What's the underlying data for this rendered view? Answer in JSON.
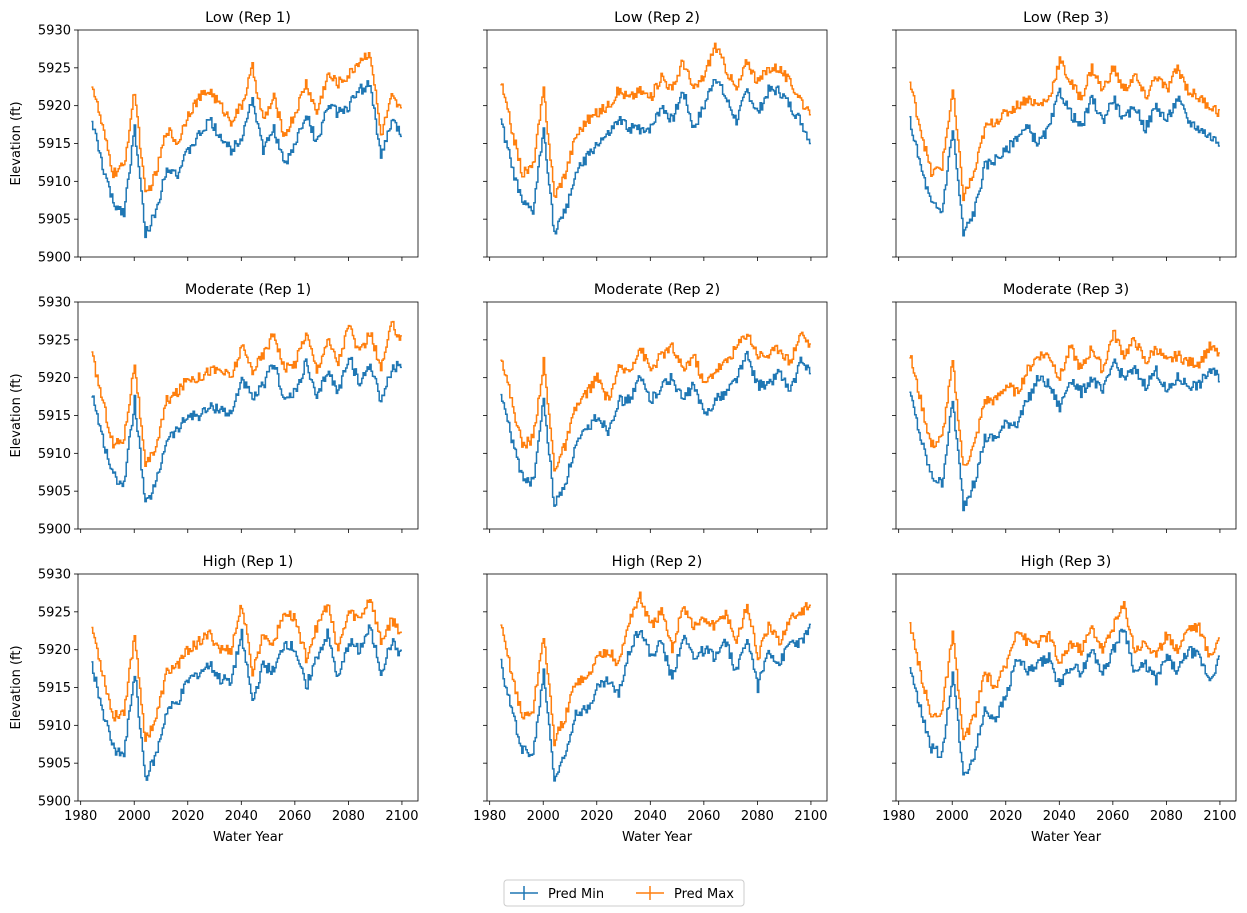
{
  "figure": {
    "legend": {
      "placement": "bottom-center",
      "entries": [
        {
          "label": "Pred Min",
          "color": "#1f77b4"
        },
        {
          "label": "Pred Max",
          "color": "#ff7f0e"
        }
      ]
    }
  },
  "chart_data": {
    "type": "line",
    "layout": "3x3 grid, shared x and y axes",
    "xlabel": "Water Year",
    "ylabel": "Elevation (ft)",
    "xlim": [
      1979,
      2106
    ],
    "ylim": [
      5900,
      5930
    ],
    "xticks": [
      1980,
      2000,
      2020,
      2040,
      2060,
      2080,
      2100
    ],
    "yticks": [
      5900,
      5905,
      5910,
      5915,
      5920,
      5925,
      5930
    ],
    "grid": false,
    "x": [
      1984,
      1988,
      1992,
      1996,
      2000,
      2004,
      2008,
      2012,
      2016,
      2020,
      2024,
      2028,
      2032,
      2036,
      2040,
      2044,
      2048,
      2052,
      2056,
      2060,
      2064,
      2068,
      2072,
      2076,
      2080,
      2084,
      2088,
      2092,
      2096,
      2100
    ],
    "panels": [
      {
        "title": "Low (Rep 1)",
        "series": [
          {
            "name": "Pred Min",
            "color": "#1f77b4",
            "values": [
              5918,
              5912,
              5907,
              5906,
              5917,
              5903,
              5906,
              5912,
              5911,
              5914,
              5916,
              5918,
              5916,
              5914,
              5916,
              5921,
              5914,
              5917,
              5912,
              5915,
              5919,
              5915,
              5920,
              5919,
              5920,
              5922,
              5923,
              5913,
              5918,
              5916
            ]
          },
          {
            "name": "Pred Max",
            "color": "#ff7f0e",
            "values": [
              5923,
              5917,
              5911,
              5912,
              5922,
              5908,
              5911,
              5917,
              5915,
              5919,
              5921,
              5922,
              5920,
              5918,
              5920,
              5925,
              5918,
              5921,
              5916,
              5919,
              5923,
              5919,
              5924,
              5923,
              5924,
              5926,
              5927,
              5916,
              5921,
              5919
            ]
          }
        ]
      },
      {
        "title": "Low (Rep 2)",
        "series": [
          {
            "name": "Pred Min",
            "color": "#1f77b4",
            "values": [
              5918,
              5912,
              5907,
              5906,
              5917,
              5903,
              5906,
              5911,
              5913,
              5915,
              5916,
              5918,
              5917,
              5917,
              5917,
              5920,
              5918,
              5922,
              5917,
              5920,
              5924,
              5921,
              5918,
              5922,
              5919,
              5922,
              5922,
              5920,
              5918,
              5915
            ]
          },
          {
            "name": "Pred Max",
            "color": "#ff7f0e",
            "values": [
              5923,
              5917,
              5911,
              5912,
              5922,
              5908,
              5911,
              5916,
              5918,
              5919,
              5920,
              5922,
              5921,
              5922,
              5921,
              5924,
              5922,
              5926,
              5922,
              5924,
              5928,
              5925,
              5922,
              5926,
              5923,
              5925,
              5925,
              5923,
              5921,
              5918
            ]
          }
        ]
      },
      {
        "title": "Low (Rep 3)",
        "series": [
          {
            "name": "Pred Min",
            "color": "#1f77b4",
            "values": [
              5918,
              5912,
              5907,
              5906,
              5917,
              5903,
              5906,
              5912,
              5913,
              5914,
              5916,
              5917,
              5915,
              5917,
              5922,
              5919,
              5917,
              5921,
              5918,
              5921,
              5918,
              5920,
              5917,
              5920,
              5918,
              5921,
              5918,
              5917,
              5916,
              5915
            ]
          },
          {
            "name": "Pred Max",
            "color": "#ff7f0e",
            "values": [
              5923,
              5917,
              5911,
              5912,
              5922,
              5908,
              5911,
              5917,
              5918,
              5919,
              5920,
              5921,
              5920,
              5921,
              5926,
              5923,
              5921,
              5925,
              5922,
              5925,
              5922,
              5924,
              5921,
              5924,
              5922,
              5925,
              5922,
              5921,
              5920,
              5919
            ]
          }
        ]
      },
      {
        "title": "Moderate (Rep 1)",
        "series": [
          {
            "name": "Pred Min",
            "color": "#1f77b4",
            "values": [
              5918,
              5912,
              5907,
              5906,
              5917,
              5903,
              5906,
              5912,
              5913,
              5915,
              5915,
              5916,
              5916,
              5915,
              5920,
              5917,
              5919,
              5922,
              5917,
              5918,
              5922,
              5917,
              5921,
              5918,
              5923,
              5919,
              5922,
              5917,
              5921,
              5922
            ]
          },
          {
            "name": "Pred Max",
            "color": "#ff7f0e",
            "values": [
              5923,
              5917,
              5911,
              5912,
              5922,
              5908,
              5911,
              5917,
              5918,
              5920,
              5920,
              5921,
              5921,
              5920,
              5924,
              5921,
              5923,
              5926,
              5921,
              5922,
              5926,
              5921,
              5925,
              5922,
              5927,
              5923,
              5926,
              5921,
              5927,
              5925
            ]
          }
        ]
      },
      {
        "title": "Moderate (Rep 2)",
        "series": [
          {
            "name": "Pred Min",
            "color": "#1f77b4",
            "values": [
              5918,
              5912,
              5907,
              5906,
              5917,
              5903,
              5906,
              5911,
              5913,
              5915,
              5913,
              5917,
              5917,
              5920,
              5917,
              5919,
              5920,
              5917,
              5919,
              5915,
              5917,
              5918,
              5920,
              5923,
              5919,
              5919,
              5921,
              5918,
              5922,
              5921
            ]
          },
          {
            "name": "Pred Max",
            "color": "#ff7f0e",
            "values": [
              5923,
              5917,
              5911,
              5912,
              5922,
              5908,
              5911,
              5916,
              5918,
              5920,
              5917,
              5921,
              5921,
              5924,
              5921,
              5923,
              5924,
              5921,
              5923,
              5919,
              5921,
              5922,
              5924,
              5926,
              5923,
              5923,
              5924,
              5922,
              5926,
              5924
            ]
          }
        ]
      },
      {
        "title": "Moderate (Rep 3)",
        "series": [
          {
            "name": "Pred Min",
            "color": "#1f77b4",
            "values": [
              5918,
              5912,
              5907,
              5906,
              5917,
              5903,
              5906,
              5912,
              5912,
              5914,
              5914,
              5917,
              5920,
              5919,
              5916,
              5920,
              5918,
              5920,
              5918,
              5922,
              5920,
              5921,
              5919,
              5921,
              5918,
              5920,
              5919,
              5919,
              5921,
              5920
            ]
          },
          {
            "name": "Pred Max",
            "color": "#ff7f0e",
            "values": [
              5923,
              5917,
              5911,
              5912,
              5922,
              5908,
              5911,
              5917,
              5917,
              5919,
              5918,
              5921,
              5923,
              5923,
              5920,
              5924,
              5921,
              5924,
              5921,
              5926,
              5923,
              5925,
              5922,
              5924,
              5922,
              5923,
              5922,
              5922,
              5924,
              5923
            ]
          }
        ]
      },
      {
        "title": "High (Rep 1)",
        "series": [
          {
            "name": "Pred Min",
            "color": "#1f77b4",
            "values": [
              5918,
              5912,
              5907,
              5906,
              5917,
              5903,
              5906,
              5912,
              5913,
              5916,
              5917,
              5918,
              5916,
              5916,
              5922,
              5913,
              5918,
              5917,
              5921,
              5920,
              5915,
              5919,
              5922,
              5916,
              5921,
              5920,
              5923,
              5917,
              5921,
              5919
            ]
          },
          {
            "name": "Pred Max",
            "color": "#ff7f0e",
            "values": [
              5923,
              5917,
              5911,
              5912,
              5922,
              5908,
              5911,
              5917,
              5918,
              5920,
              5921,
              5922,
              5920,
              5920,
              5926,
              5917,
              5922,
              5921,
              5925,
              5924,
              5919,
              5923,
              5926,
              5920,
              5925,
              5924,
              5927,
              5921,
              5924,
              5922
            ]
          }
        ]
      },
      {
        "title": "High (Rep 2)",
        "series": [
          {
            "name": "Pred Min",
            "color": "#1f77b4",
            "values": [
              5918,
              5912,
              5907,
              5906,
              5917,
              5903,
              5906,
              5912,
              5912,
              5915,
              5916,
              5914,
              5920,
              5923,
              5919,
              5921,
              5916,
              5922,
              5919,
              5920,
              5919,
              5921,
              5917,
              5922,
              5915,
              5920,
              5918,
              5921,
              5921,
              5923
            ]
          },
          {
            "name": "Pred Max",
            "color": "#ff7f0e",
            "values": [
              5923,
              5917,
              5911,
              5912,
              5922,
              5908,
              5911,
              5916,
              5916,
              5919,
              5920,
              5918,
              5924,
              5927,
              5923,
              5925,
              5920,
              5926,
              5923,
              5924,
              5923,
              5925,
              5921,
              5926,
              5919,
              5923,
              5921,
              5924,
              5925,
              5926
            ]
          }
        ]
      },
      {
        "title": "High (Rep 3)",
        "series": [
          {
            "name": "Pred Min",
            "color": "#1f77b4",
            "values": [
              5918,
              5912,
              5907,
              5906,
              5917,
              5903,
              5906,
              5912,
              5911,
              5914,
              5919,
              5917,
              5918,
              5919,
              5915,
              5918,
              5917,
              5920,
              5917,
              5920,
              5923,
              5917,
              5918,
              5916,
              5919,
              5917,
              5920,
              5919,
              5916,
              5919
            ]
          },
          {
            "name": "Pred Max",
            "color": "#ff7f0e",
            "values": [
              5923,
              5917,
              5911,
              5912,
              5922,
              5908,
              5911,
              5917,
              5915,
              5918,
              5923,
              5921,
              5921,
              5922,
              5918,
              5921,
              5920,
              5923,
              5920,
              5923,
              5926,
              5920,
              5921,
              5919,
              5922,
              5920,
              5923,
              5923,
              5919,
              5922
            ]
          }
        ]
      }
    ]
  }
}
